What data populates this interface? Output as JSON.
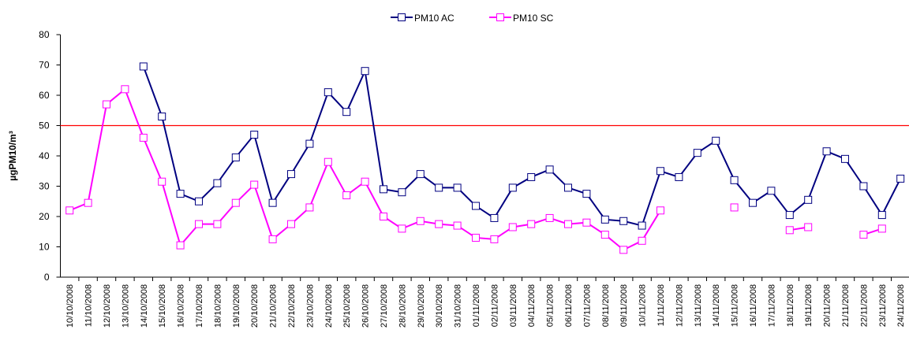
{
  "chart_data": {
    "type": "line",
    "y_label": "µgPM10/m³",
    "categories": [
      "10/10/2008",
      "11/10/2008",
      "12/10/2008",
      "13/10/2008",
      "14/10/2008",
      "15/10/2008",
      "16/10/2008",
      "17/10/2008",
      "18/10/2008",
      "19/10/2008",
      "20/10/2008",
      "21/10/2008",
      "22/10/2008",
      "23/10/2008",
      "24/10/2008",
      "25/10/2008",
      "26/10/2008",
      "27/10/2008",
      "28/10/2008",
      "29/10/2008",
      "30/10/2008",
      "31/10/2008",
      "01/11/2008",
      "02/11/2008",
      "03/11/2008",
      "04/11/2008",
      "05/11/2008",
      "06/11/2008",
      "07/11/2008",
      "08/11/2008",
      "09/11/2008",
      "10/11/2008",
      "11/11/2008",
      "12/11/2008",
      "13/11/2008",
      "14/11/2008",
      "15/11/2008",
      "16/11/2008",
      "17/11/2008",
      "18/11/2008",
      "19/11/2008",
      "20/11/2008",
      "21/11/2008",
      "22/11/2008",
      "23/11/2008",
      "24/11/2008"
    ],
    "series": [
      {
        "name": "PM10 AC",
        "color": "#000080",
        "values": [
          null,
          null,
          null,
          null,
          69.5,
          53,
          27.5,
          25,
          31,
          39.5,
          47,
          24.5,
          34,
          44,
          61,
          54.5,
          68,
          29,
          28,
          34,
          29.5,
          29.5,
          23.5,
          19.5,
          29.5,
          33,
          35.5,
          29.5,
          27.5,
          19,
          18.5,
          17,
          35,
          33,
          41,
          45,
          32,
          24.5,
          28.5,
          20.5,
          25.5,
          41.5,
          39,
          30,
          20.5,
          32.5
        ]
      },
      {
        "name": "PM10 SC",
        "color": "#ff00ff",
        "values": [
          22,
          24.5,
          57,
          62,
          46,
          31.5,
          10.5,
          17.5,
          17.5,
          24.5,
          30.5,
          12.5,
          17.5,
          23,
          38,
          27,
          31.5,
          20,
          16,
          18.5,
          17.5,
          17,
          13,
          12.5,
          16.5,
          17.5,
          19.5,
          17.5,
          18,
          14,
          9,
          12,
          22,
          null,
          null,
          null,
          23,
          null,
          null,
          15.5,
          16.5,
          null,
          null,
          14,
          16,
          null
        ]
      }
    ],
    "reference_line": {
      "value": 50,
      "color": "#ff0000"
    },
    "ylim": [
      0,
      80
    ],
    "yticks": [
      0,
      10,
      20,
      30,
      40,
      50,
      60,
      70,
      80
    ],
    "grid": false,
    "legend": "top"
  }
}
